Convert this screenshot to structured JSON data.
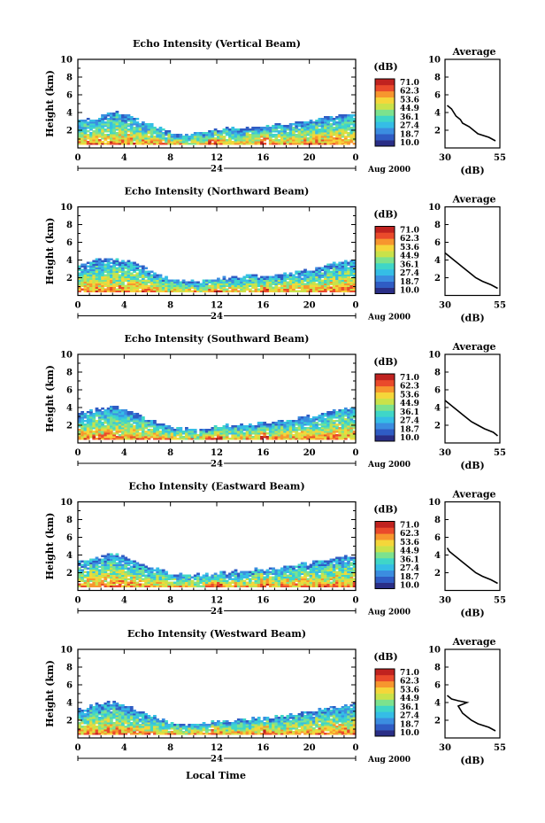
{
  "chart_data": {
    "type": "heatmap",
    "xlabel": "Local Time",
    "date_label": "Aug 2000",
    "day_label": "24",
    "x_range": [
      0,
      24
    ],
    "x_ticks": [
      "0",
      "4",
      "8",
      "12",
      "16",
      "20",
      "0"
    ],
    "ylabel": "Height (km)",
    "y_range": [
      0,
      10
    ],
    "y_ticks": [
      "2",
      "4",
      "6",
      "8",
      "10"
    ],
    "colorbar": {
      "unit": "(dB)",
      "levels": [
        "71.0",
        "62.3",
        "53.6",
        "44.9",
        "36.1",
        "27.4",
        "18.7",
        "10.0"
      ],
      "colors": [
        "#2a2e86",
        "#2f5cc4",
        "#3b8de0",
        "#35bde6",
        "#3fd6c8",
        "#7ce28e",
        "#c9e24a",
        "#f5d63a",
        "#f7962e",
        "#ea4a2b",
        "#c0221f"
      ]
    },
    "panels": [
      {
        "title": "Echo Intensity (Vertical Beam)",
        "cloud_top_km": [
          3.0,
          3.2,
          3.6,
          4.0,
          3.8,
          3.2,
          2.6,
          2.1,
          1.7,
          1.5,
          1.6,
          1.8,
          2.0,
          2.1,
          2.2,
          2.3,
          2.4,
          2.5,
          2.7,
          2.9,
          3.1,
          3.3,
          3.5,
          3.6,
          3.7
        ],
        "average_profile": {
          "title": "Average",
          "xlabel": "(dB)",
          "xlim": [
            30,
            55
          ],
          "x_ticks": [
            "30",
            "55"
          ],
          "height_km": [
            0.8,
            1.2,
            1.6,
            2.0,
            2.4,
            2.8,
            3.2,
            3.6,
            4.0,
            4.4,
            4.8
          ],
          "db": [
            53,
            50,
            45,
            43,
            41,
            38,
            37,
            35,
            34,
            33,
            31
          ]
        }
      },
      {
        "title": "Echo Intensity (Northward Beam)",
        "cloud_top_km": [
          3.5,
          3.8,
          4.0,
          4.0,
          3.9,
          3.4,
          2.8,
          2.2,
          1.7,
          1.5,
          1.5,
          1.6,
          1.8,
          1.9,
          2.0,
          2.1,
          2.2,
          2.3,
          2.4,
          2.6,
          2.8,
          3.2,
          3.6,
          3.8,
          3.9
        ],
        "average_profile": {
          "title": "Average",
          "xlabel": "(dB)",
          "xlim": [
            30,
            55
          ],
          "x_ticks": [
            "30",
            "55"
          ],
          "height_km": [
            0.8,
            1.2,
            1.6,
            2.0,
            2.4,
            2.8,
            3.2,
            3.6,
            4.0,
            4.4,
            4.8
          ],
          "db": [
            54,
            51,
            47,
            44,
            42,
            40,
            38,
            36,
            34,
            32,
            30
          ]
        }
      },
      {
        "title": "Echo Intensity (Southward Beam)",
        "cloud_top_km": [
          3.3,
          3.6,
          3.9,
          4.0,
          3.8,
          3.3,
          2.7,
          2.1,
          1.7,
          1.5,
          1.5,
          1.6,
          1.8,
          1.9,
          2.0,
          2.1,
          2.2,
          2.3,
          2.5,
          2.7,
          2.9,
          3.3,
          3.6,
          3.8,
          3.9
        ],
        "average_profile": {
          "title": "Average",
          "xlabel": "(dB)",
          "xlim": [
            30,
            55
          ],
          "x_ticks": [
            "30",
            "55"
          ],
          "height_km": [
            0.8,
            1.2,
            1.6,
            2.0,
            2.4,
            2.8,
            3.2,
            3.6,
            4.0,
            4.4,
            4.8
          ],
          "db": [
            54,
            52,
            48,
            45,
            42,
            40,
            38,
            36,
            34,
            32,
            30
          ]
        }
      },
      {
        "title": "Echo Intensity (Eastward Beam)",
        "cloud_top_km": [
          3.2,
          3.5,
          3.8,
          4.0,
          3.7,
          3.1,
          2.6,
          2.1,
          1.8,
          1.6,
          1.6,
          1.7,
          1.9,
          2.0,
          2.1,
          2.2,
          2.3,
          2.4,
          2.6,
          2.8,
          3.0,
          3.3,
          3.6,
          3.8,
          3.8
        ],
        "average_profile": {
          "title": "Average",
          "xlabel": "(dB)",
          "xlim": [
            30,
            55
          ],
          "x_ticks": [
            "30",
            "55"
          ],
          "height_km": [
            0.8,
            1.2,
            1.6,
            2.0,
            2.4,
            2.8,
            3.2,
            3.6,
            4.0,
            4.4,
            4.8
          ],
          "db": [
            54,
            51,
            47,
            44,
            42,
            40,
            38,
            36,
            34,
            32,
            31
          ]
        }
      },
      {
        "title": "Echo Intensity (Westward Beam)",
        "cloud_top_km": [
          3.2,
          3.5,
          3.8,
          3.9,
          3.6,
          3.0,
          2.5,
          2.0,
          1.7,
          1.5,
          1.5,
          1.6,
          1.8,
          1.9,
          2.0,
          2.1,
          2.2,
          2.3,
          2.5,
          2.7,
          2.9,
          3.2,
          3.5,
          3.6,
          3.7
        ],
        "average_profile": {
          "title": "Average",
          "xlabel": "(dB)",
          "xlim": [
            30,
            55
          ],
          "x_ticks": [
            "30",
            "55"
          ],
          "height_km": [
            0.8,
            1.2,
            1.6,
            2.0,
            2.4,
            2.8,
            3.2,
            3.6,
            4.0,
            4.2,
            4.4,
            4.8
          ],
          "db": [
            53,
            50,
            45,
            42,
            40,
            38,
            37,
            36,
            40,
            36,
            33,
            31
          ]
        }
      }
    ]
  }
}
